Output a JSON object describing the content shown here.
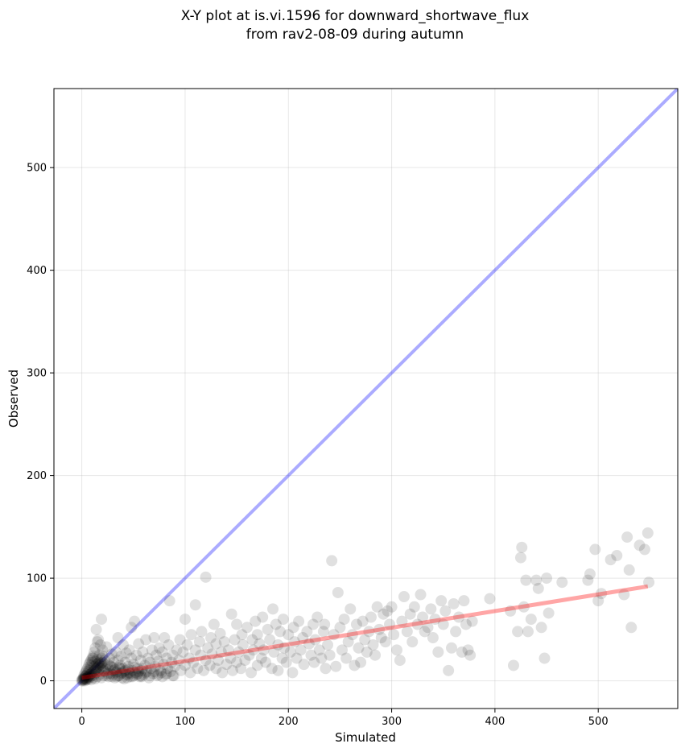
{
  "chart_data": {
    "type": "scatter",
    "title_line1": "X-Y plot at is.vi.1596 for downward_shortwave_flux",
    "title_line2": "from rav2-08-09 during autumn",
    "xlabel": "Simulated",
    "ylabel": "Observed",
    "xlim": [
      -27,
      577
    ],
    "ylim": [
      -27,
      577
    ],
    "xticks": [
      0,
      100,
      200,
      300,
      400,
      500
    ],
    "yticks": [
      0,
      100,
      200,
      300,
      400,
      500
    ],
    "grid": true,
    "point_color": "#000000",
    "identity_line_color": "#0000ff",
    "fit_line_color": "#ff0000",
    "fit_line": {
      "x_start": 0,
      "y_start": 3,
      "x_end": 548,
      "y_end": 92
    },
    "points": [
      [
        0,
        0
      ],
      [
        0,
        1
      ],
      [
        1,
        0
      ],
      [
        1,
        2
      ],
      [
        2,
        1
      ],
      [
        2,
        3
      ],
      [
        3,
        0
      ],
      [
        3,
        4
      ],
      [
        4,
        2
      ],
      [
        4,
        5
      ],
      [
        5,
        1
      ],
      [
        5,
        6
      ],
      [
        6,
        3
      ],
      [
        6,
        8
      ],
      [
        7,
        2
      ],
      [
        7,
        10
      ],
      [
        8,
        4
      ],
      [
        8,
        12
      ],
      [
        9,
        1
      ],
      [
        9,
        15
      ],
      [
        10,
        5
      ],
      [
        10,
        18
      ],
      [
        11,
        3
      ],
      [
        11,
        22
      ],
      [
        12,
        6
      ],
      [
        12,
        28
      ],
      [
        13,
        2
      ],
      [
        13,
        32
      ],
      [
        14,
        8
      ],
      [
        14,
        50
      ],
      [
        15,
        4
      ],
      [
        15,
        38
      ],
      [
        16,
        10
      ],
      [
        16,
        40
      ],
      [
        17,
        6
      ],
      [
        17,
        25
      ],
      [
        18,
        12
      ],
      [
        18,
        35
      ],
      [
        19,
        3
      ],
      [
        19,
        60
      ],
      [
        20,
        14
      ],
      [
        20,
        30
      ],
      [
        22,
        9
      ],
      [
        22,
        20
      ],
      [
        24,
        5
      ],
      [
        24,
        33
      ],
      [
        25,
        16
      ],
      [
        26,
        11
      ],
      [
        27,
        22
      ],
      [
        28,
        7
      ],
      [
        29,
        26
      ],
      [
        30,
        13
      ],
      [
        31,
        18
      ],
      [
        32,
        3
      ],
      [
        33,
        28
      ],
      [
        34,
        9
      ],
      [
        35,
        20
      ],
      [
        35,
        42
      ],
      [
        36,
        5
      ],
      [
        37,
        15
      ],
      [
        38,
        24
      ],
      [
        39,
        8
      ],
      [
        40,
        12
      ],
      [
        40,
        35
      ],
      [
        41,
        2
      ],
      [
        42,
        18
      ],
      [
        43,
        27
      ],
      [
        44,
        6
      ],
      [
        45,
        14
      ],
      [
        46,
        30
      ],
      [
        47,
        4
      ],
      [
        48,
        22
      ],
      [
        48,
        52
      ],
      [
        49,
        10
      ],
      [
        50,
        16
      ],
      [
        51,
        58
      ],
      [
        52,
        8
      ],
      [
        53,
        25
      ],
      [
        54,
        12
      ],
      [
        55,
        36
      ],
      [
        56,
        4
      ],
      [
        57,
        20
      ],
      [
        58,
        10
      ],
      [
        59,
        28
      ],
      [
        60,
        6
      ],
      [
        61,
        15
      ],
      [
        62,
        40
      ],
      [
        63,
        9
      ],
      [
        64,
        22
      ],
      [
        65,
        3
      ],
      [
        66,
        18
      ],
      [
        67,
        12
      ],
      [
        68,
        30
      ],
      [
        69,
        7
      ],
      [
        70,
        42
      ],
      [
        71,
        14
      ],
      [
        72,
        25
      ],
      [
        73,
        5
      ],
      [
        74,
        19
      ],
      [
        75,
        32
      ],
      [
        76,
        10
      ],
      [
        77,
        8
      ],
      [
        78,
        28
      ],
      [
        79,
        16
      ],
      [
        80,
        42
      ],
      [
        81,
        6
      ],
      [
        82,
        22
      ],
      [
        83,
        12
      ],
      [
        84,
        35
      ],
      [
        85,
        78
      ],
      [
        86,
        9
      ],
      [
        87,
        18
      ],
      [
        88,
        25
      ],
      [
        89,
        5
      ],
      [
        90,
        14
      ],
      [
        92,
        30
      ],
      [
        94,
        20
      ],
      [
        95,
        40
      ],
      [
        96,
        10
      ],
      [
        98,
        28
      ],
      [
        100,
        15
      ],
      [
        100,
        60
      ],
      [
        102,
        35
      ],
      [
        104,
        22
      ],
      [
        105,
        8
      ],
      [
        106,
        45
      ],
      [
        108,
        18
      ],
      [
        110,
        30
      ],
      [
        110,
        74
      ],
      [
        112,
        12
      ],
      [
        114,
        38
      ],
      [
        115,
        25
      ],
      [
        116,
        48
      ],
      [
        118,
        10
      ],
      [
        120,
        20
      ],
      [
        120,
        101
      ],
      [
        122,
        32
      ],
      [
        124,
        15
      ],
      [
        125,
        42
      ],
      [
        126,
        26
      ],
      [
        128,
        55
      ],
      [
        130,
        12
      ],
      [
        130,
        36
      ],
      [
        132,
        20
      ],
      [
        134,
        46
      ],
      [
        135,
        28
      ],
      [
        136,
        8
      ],
      [
        138,
        38
      ],
      [
        140,
        16
      ],
      [
        142,
        30
      ],
      [
        144,
        22
      ],
      [
        145,
        65
      ],
      [
        146,
        10
      ],
      [
        148,
        40
      ],
      [
        150,
        18
      ],
      [
        150,
        55
      ],
      [
        152,
        28
      ],
      [
        154,
        12
      ],
      [
        155,
        45
      ],
      [
        156,
        35
      ],
      [
        158,
        20
      ],
      [
        160,
        52
      ],
      [
        162,
        25
      ],
      [
        164,
        8
      ],
      [
        165,
        40
      ],
      [
        166,
        30
      ],
      [
        168,
        58
      ],
      [
        170,
        15
      ],
      [
        170,
        45
      ],
      [
        172,
        36
      ],
      [
        174,
        22
      ],
      [
        175,
        62
      ],
      [
        176,
        30
      ],
      [
        178,
        18
      ],
      [
        180,
        50
      ],
      [
        182,
        40
      ],
      [
        184,
        12
      ],
      [
        185,
        70
      ],
      [
        186,
        28
      ],
      [
        188,
        55
      ],
      [
        190,
        35
      ],
      [
        190,
        10
      ],
      [
        192,
        48
      ],
      [
        194,
        22
      ],
      [
        195,
        60
      ],
      [
        196,
        32
      ],
      [
        198,
        18
      ],
      [
        200,
        45
      ],
      [
        202,
        28
      ],
      [
        204,
        8
      ],
      [
        205,
        52
      ],
      [
        206,
        38
      ],
      [
        208,
        22
      ],
      [
        210,
        58
      ],
      [
        212,
        30
      ],
      [
        214,
        42
      ],
      [
        215,
        16
      ],
      [
        218,
        48
      ],
      [
        220,
        36
      ],
      [
        222,
        25
      ],
      [
        224,
        55
      ],
      [
        225,
        18
      ],
      [
        226,
        40
      ],
      [
        228,
        62
      ],
      [
        230,
        30
      ],
      [
        232,
        22
      ],
      [
        234,
        48
      ],
      [
        235,
        55
      ],
      [
        236,
        12
      ],
      [
        238,
        35
      ],
      [
        240,
        25
      ],
      [
        242,
        117
      ],
      [
        244,
        45
      ],
      [
        246,
        14
      ],
      [
        248,
        86
      ],
      [
        250,
        52
      ],
      [
        252,
        30
      ],
      [
        254,
        60
      ],
      [
        256,
        22
      ],
      [
        258,
        38
      ],
      [
        260,
        70
      ],
      [
        262,
        45
      ],
      [
        264,
        15
      ],
      [
        266,
        55
      ],
      [
        268,
        32
      ],
      [
        270,
        18
      ],
      [
        272,
        58
      ],
      [
        274,
        40
      ],
      [
        276,
        28
      ],
      [
        278,
        48
      ],
      [
        280,
        62
      ],
      [
        282,
        35
      ],
      [
        284,
        25
      ],
      [
        286,
        72
      ],
      [
        288,
        50
      ],
      [
        290,
        42
      ],
      [
        292,
        65
      ],
      [
        294,
        38
      ],
      [
        296,
        68
      ],
      [
        298,
        55
      ],
      [
        300,
        72
      ],
      [
        302,
        45
      ],
      [
        305,
        30
      ],
      [
        308,
        20
      ],
      [
        310,
        58
      ],
      [
        312,
        82
      ],
      [
        315,
        48
      ],
      [
        318,
        65
      ],
      [
        320,
        38
      ],
      [
        322,
        72
      ],
      [
        325,
        55
      ],
      [
        328,
        84
      ],
      [
        330,
        62
      ],
      [
        332,
        48
      ],
      [
        335,
        52
      ],
      [
        338,
        70
      ],
      [
        340,
        42
      ],
      [
        342,
        60
      ],
      [
        345,
        28
      ],
      [
        348,
        78
      ],
      [
        350,
        55
      ],
      [
        352,
        68
      ],
      [
        355,
        10
      ],
      [
        358,
        32
      ],
      [
        360,
        75
      ],
      [
        362,
        48
      ],
      [
        365,
        62
      ],
      [
        368,
        28
      ],
      [
        370,
        78
      ],
      [
        372,
        55
      ],
      [
        374,
        30
      ],
      [
        376,
        25
      ],
      [
        378,
        58
      ],
      [
        395,
        80
      ],
      [
        415,
        68
      ],
      [
        418,
        15
      ],
      [
        422,
        48
      ],
      [
        425,
        120
      ],
      [
        426,
        130
      ],
      [
        428,
        72
      ],
      [
        430,
        98
      ],
      [
        432,
        48
      ],
      [
        435,
        60
      ],
      [
        440,
        98
      ],
      [
        442,
        90
      ],
      [
        445,
        52
      ],
      [
        448,
        22
      ],
      [
        450,
        100
      ],
      [
        452,
        66
      ],
      [
        465,
        96
      ],
      [
        490,
        98
      ],
      [
        492,
        104
      ],
      [
        497,
        128
      ],
      [
        500,
        78
      ],
      [
        503,
        85
      ],
      [
        512,
        118
      ],
      [
        518,
        122
      ],
      [
        525,
        84
      ],
      [
        528,
        140
      ],
      [
        530,
        108
      ],
      [
        532,
        52
      ],
      [
        540,
        132
      ],
      [
        545,
        128
      ],
      [
        548,
        144
      ],
      [
        549,
        96
      ],
      [
        1,
        1
      ],
      [
        2,
        2
      ],
      [
        3,
        2
      ],
      [
        4,
        1
      ],
      [
        5,
        3
      ],
      [
        6,
        4
      ],
      [
        7,
        5
      ],
      [
        8,
        6
      ],
      [
        9,
        7
      ],
      [
        10,
        8
      ],
      [
        11,
        9
      ],
      [
        12,
        10
      ],
      [
        13,
        11
      ],
      [
        14,
        12
      ],
      [
        15,
        13
      ],
      [
        16,
        14
      ],
      [
        17,
        15
      ],
      [
        18,
        16
      ],
      [
        19,
        17
      ],
      [
        20,
        18
      ],
      [
        21,
        5
      ],
      [
        23,
        12
      ],
      [
        25,
        7
      ],
      [
        27,
        15
      ],
      [
        29,
        4
      ],
      [
        31,
        10
      ],
      [
        33,
        8
      ],
      [
        35,
        5
      ],
      [
        37,
        12
      ],
      [
        39,
        3
      ],
      [
        41,
        9
      ],
      [
        43,
        6
      ],
      [
        45,
        11
      ],
      [
        47,
        7
      ],
      [
        49,
        4
      ],
      [
        51,
        13
      ],
      [
        53,
        6
      ],
      [
        55,
        9
      ],
      [
        57,
        5
      ],
      [
        59,
        12
      ],
      [
        2,
        5
      ],
      [
        3,
        7
      ],
      [
        4,
        9
      ],
      [
        5,
        11
      ],
      [
        6,
        13
      ],
      [
        7,
        16
      ],
      [
        8,
        18
      ],
      [
        9,
        20
      ],
      [
        10,
        22
      ],
      [
        11,
        24
      ],
      [
        12,
        14
      ],
      [
        13,
        19
      ],
      [
        14,
        16
      ],
      [
        15,
        21
      ],
      [
        16,
        17
      ],
      [
        17,
        18
      ],
      [
        18,
        20
      ],
      [
        19,
        22
      ],
      [
        20,
        24
      ],
      [
        21,
        10
      ],
      [
        26,
        4
      ],
      [
        28,
        14
      ],
      [
        30,
        6
      ],
      [
        32,
        11
      ],
      [
        34,
        4
      ],
      [
        36,
        13
      ],
      [
        38,
        7
      ],
      [
        42,
        10
      ],
      [
        44,
        3
      ],
      [
        46,
        8
      ],
      [
        50,
        5
      ],
      [
        54,
        7
      ],
      [
        58,
        4
      ],
      [
        62,
        8
      ],
      [
        66,
        5
      ],
      [
        70,
        9
      ],
      [
        74,
        6
      ],
      [
        78,
        4
      ],
      [
        82,
        7
      ],
      [
        88,
        5
      ]
    ]
  }
}
